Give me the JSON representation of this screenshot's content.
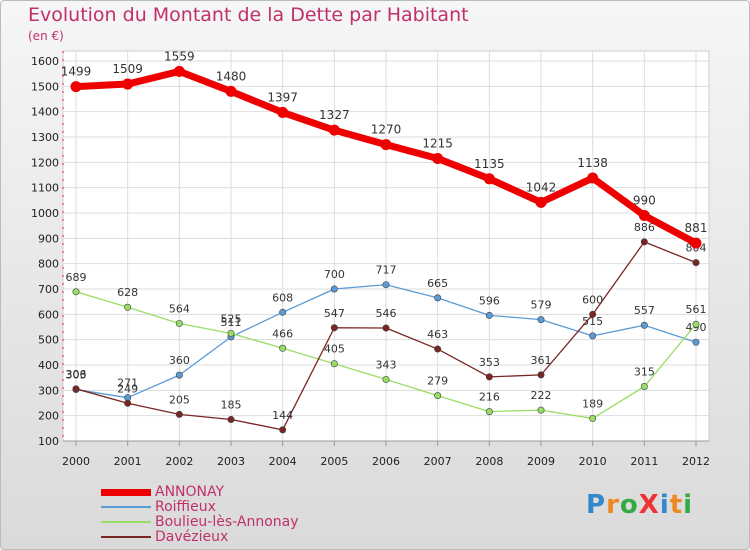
{
  "title": "Evolution du Montant de la Dette par Habitant",
  "subtitle": "(en €)",
  "brand": "ProXiti",
  "chart_data": {
    "type": "line",
    "title": "Evolution du Montant de la Dette par Habitant",
    "subtitle": "(en €)",
    "x": [
      "2000",
      "2001",
      "2002",
      "2003",
      "2004",
      "2005",
      "2006",
      "2007",
      "2008",
      "2009",
      "2010",
      "2011",
      "2012"
    ],
    "ylim": [
      100,
      1600
    ],
    "yticks": [
      100,
      200,
      300,
      400,
      500,
      600,
      700,
      800,
      900,
      1000,
      1100,
      1200,
      1300,
      1400,
      1500,
      1600
    ],
    "grid": true,
    "legend_position": "bottom-left",
    "series": [
      {
        "name": "ANNONAY",
        "color": "#ee0000",
        "values": [
          1499,
          1509,
          1559,
          1480,
          1397,
          1327,
          1270,
          1215,
          1135,
          1042,
          1138,
          990,
          881
        ]
      },
      {
        "name": "Roiffieux",
        "color": "#5b9bd5",
        "values": [
          303,
          271,
          360,
          511,
          608,
          700,
          717,
          665,
          596,
          579,
          515,
          557,
          490
        ]
      },
      {
        "name": "Boulieu-lès-Annonay",
        "color": "#99dd66",
        "values": [
          689,
          628,
          564,
          525,
          466,
          405,
          343,
          279,
          216,
          222,
          189,
          315,
          561
        ]
      },
      {
        "name": "Davézieux",
        "color": "#7a2424",
        "values": [
          306,
          249,
          205,
          185,
          144,
          547,
          546,
          463,
          353,
          361,
          600,
          886,
          804
        ]
      }
    ]
  }
}
